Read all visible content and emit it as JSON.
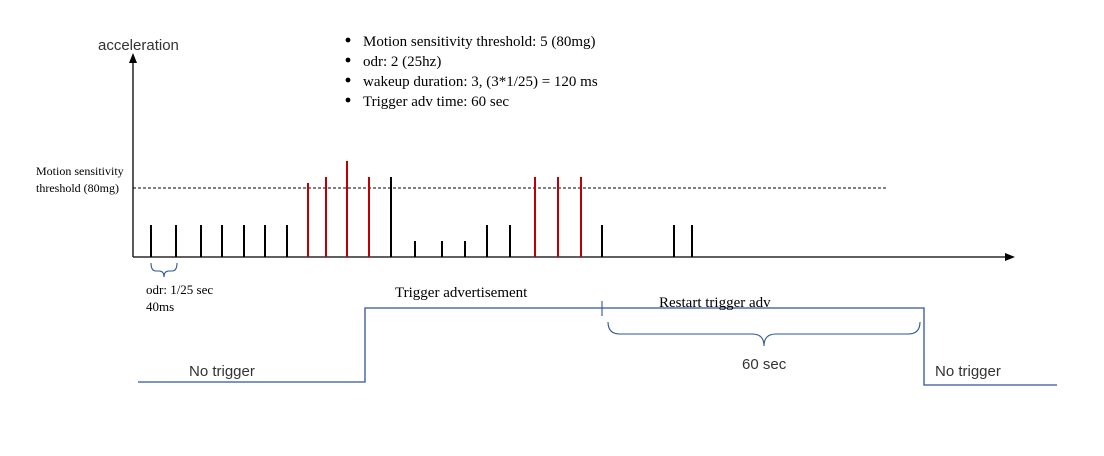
{
  "axis": {
    "y_label": "acceleration"
  },
  "notes": [
    "Motion sensitivity threshold: 5  (80mg)",
    "odr: 2  (25hz)",
    "wakeup duration: 3,  (3*1/25) = 120 ms",
    "Trigger adv time: 60 sec"
  ],
  "threshold": {
    "label_line1": "Motion sensitivity",
    "label_line2": "threshold (80mg)"
  },
  "odr_note": {
    "line1": "odr: 1/25 sec",
    "line2": "40ms"
  },
  "signal": {
    "no_trigger_left": "No trigger",
    "trigger_advertisement": "Trigger advertisement",
    "restart_trigger": "Restart trigger adv",
    "duration": "60 sec",
    "no_trigger_right": "No trigger"
  },
  "samples": {
    "below_color": "#000000",
    "above_color": "#c00000",
    "levels": [
      "low",
      "low",
      "low",
      "low",
      "low",
      "low",
      "low",
      "high",
      "high",
      "high",
      "high",
      "mid",
      "tiny",
      "tiny",
      "tiny",
      "low",
      "low",
      "high",
      "high",
      "high",
      "low",
      "low"
    ]
  },
  "colors": {
    "signal_line": "#2f5597",
    "axis": "#000000"
  }
}
